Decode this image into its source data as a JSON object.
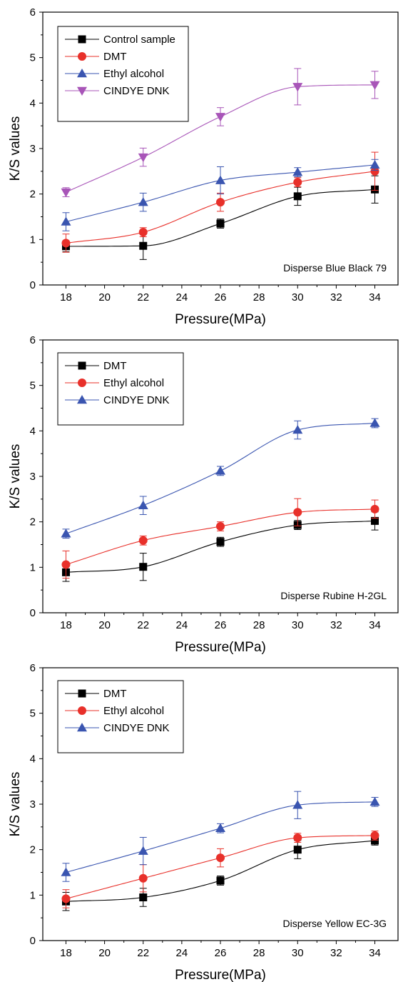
{
  "chart_data": [
    {
      "type": "line",
      "title": "",
      "xlabel": "Pressure(MPa)",
      "ylabel": "K/S values",
      "annotation": "Disperse Blue Black 79",
      "x": [
        18,
        22,
        26,
        30,
        34
      ],
      "x_ticks": [
        18,
        20,
        22,
        24,
        26,
        28,
        30,
        32,
        34
      ],
      "y_ticks": [
        0,
        1,
        2,
        3,
        4,
        5,
        6
      ],
      "xlim": [
        16.8,
        35.2
      ],
      "ylim": [
        0,
        6
      ],
      "grid": false,
      "legend_position": "top-left",
      "series": [
        {
          "name": "Control sample",
          "marker": "square",
          "color": "#000000",
          "values": [
            0.85,
            0.86,
            1.35,
            1.95,
            2.1
          ],
          "errors": [
            0.12,
            0.3,
            0.1,
            0.2,
            0.3
          ]
        },
        {
          "name": "DMT",
          "marker": "circle",
          "color": "#e8302a",
          "values": [
            0.92,
            1.16,
            1.82,
            2.26,
            2.5
          ],
          "errors": [
            0.2,
            0.1,
            0.2,
            0.1,
            0.42
          ]
        },
        {
          "name": "Ethyl alcohol",
          "marker": "triangle-up",
          "color": "#3a55b0",
          "values": [
            1.39,
            1.82,
            2.3,
            2.48,
            2.64
          ],
          "errors": [
            0.2,
            0.2,
            0.3,
            0.1,
            0.12
          ]
        },
        {
          "name": "CINDYE DNK",
          "marker": "triangle-down",
          "color": "#a855b8",
          "values": [
            2.04,
            2.81,
            3.7,
            4.36,
            4.4
          ],
          "errors": [
            0.1,
            0.2,
            0.2,
            0.4,
            0.3
          ]
        }
      ]
    },
    {
      "type": "line",
      "title": "",
      "xlabel": "Pressure(MPa)",
      "ylabel": "K/S values",
      "annotation": "Disperse Rubine H-2GL",
      "x": [
        18,
        22,
        26,
        30,
        34
      ],
      "x_ticks": [
        18,
        20,
        22,
        24,
        26,
        28,
        30,
        32,
        34
      ],
      "y_ticks": [
        0,
        1,
        2,
        3,
        4,
        5,
        6
      ],
      "xlim": [
        16.8,
        35.2
      ],
      "ylim": [
        0,
        6
      ],
      "grid": false,
      "legend_position": "top-left",
      "series": [
        {
          "name": "DMT",
          "marker": "square",
          "color": "#000000",
          "values": [
            0.89,
            1.01,
            1.56,
            1.93,
            2.02
          ],
          "errors": [
            0.2,
            0.3,
            0.1,
            0.1,
            0.2
          ]
        },
        {
          "name": "Ethyl alcohol",
          "marker": "circle",
          "color": "#e8302a",
          "values": [
            1.06,
            1.59,
            1.9,
            2.21,
            2.28
          ],
          "errors": [
            0.3,
            0.1,
            0.1,
            0.3,
            0.2
          ]
        },
        {
          "name": "CINDYE DNK",
          "marker": "triangle-up",
          "color": "#3a55b0",
          "values": [
            1.74,
            2.36,
            3.12,
            4.02,
            4.17
          ],
          "errors": [
            0.1,
            0.2,
            0.1,
            0.2,
            0.1
          ]
        }
      ]
    },
    {
      "type": "line",
      "title": "",
      "xlabel": "Pressure(MPa)",
      "ylabel": "K/S values",
      "annotation": "Disperse Yellow EC-3G",
      "x": [
        18,
        22,
        26,
        30,
        34
      ],
      "x_ticks": [
        18,
        20,
        22,
        24,
        26,
        28,
        30,
        32,
        34
      ],
      "y_ticks": [
        0,
        1,
        2,
        3,
        4,
        5,
        6
      ],
      "xlim": [
        16.8,
        35.2
      ],
      "ylim": [
        0,
        6
      ],
      "grid": false,
      "legend_position": "top-left",
      "series": [
        {
          "name": "DMT",
          "marker": "square",
          "color": "#000000",
          "values": [
            0.86,
            0.95,
            1.32,
            2.0,
            2.2
          ],
          "errors": [
            0.2,
            0.2,
            0.1,
            0.2,
            0.1
          ]
        },
        {
          "name": "Ethyl alcohol",
          "marker": "circle",
          "color": "#e8302a",
          "values": [
            0.92,
            1.37,
            1.82,
            2.26,
            2.31
          ],
          "errors": [
            0.2,
            0.3,
            0.2,
            0.1,
            0.1
          ]
        },
        {
          "name": "CINDYE DNK",
          "marker": "triangle-up",
          "color": "#3a55b0",
          "values": [
            1.5,
            1.97,
            2.47,
            2.98,
            3.05
          ],
          "errors": [
            0.2,
            0.3,
            0.1,
            0.3,
            0.1
          ]
        }
      ]
    }
  ]
}
